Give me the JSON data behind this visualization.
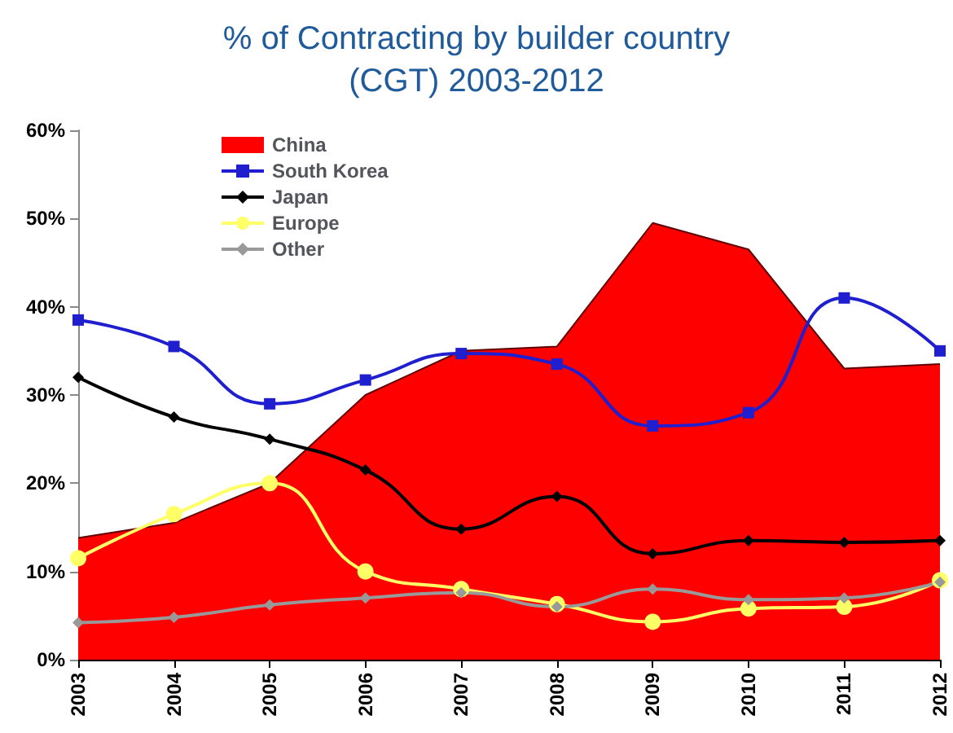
{
  "chart_data": {
    "type": "line",
    "title": "% of Contracting by builder country\n(CGT) 2003-2012",
    "categories": [
      "2003",
      "2004",
      "2005",
      "2006",
      "2007",
      "2008",
      "2009",
      "2010",
      "2011",
      "2012"
    ],
    "series": [
      {
        "name": "China",
        "type": "area",
        "color": "#ff0000",
        "marker": "none",
        "values": [
          13.8,
          15.5,
          20,
          30,
          35,
          35.5,
          49.5,
          46.5,
          33,
          33.5
        ]
      },
      {
        "name": "South Korea",
        "color": "#1f1fd0",
        "marker": "square",
        "values": [
          38.5,
          35.5,
          29,
          31.7,
          34.7,
          33.5,
          26.5,
          28,
          41,
          35
        ]
      },
      {
        "name": "Japan",
        "color": "#000000",
        "marker": "diamond",
        "values": [
          32,
          27.5,
          25,
          21.5,
          14.8,
          18.5,
          12,
          13.5,
          13.3,
          13.5
        ]
      },
      {
        "name": "Europe",
        "color": "#ffff66",
        "marker": "circle",
        "values": [
          11.5,
          16.5,
          20,
          10,
          8,
          6.3,
          4.3,
          5.8,
          6,
          9
        ]
      },
      {
        "name": "Other",
        "color": "#999999",
        "marker": "diamond",
        "values": [
          4.2,
          4.8,
          6.2,
          7,
          7.6,
          6,
          8,
          6.8,
          7,
          8.8
        ]
      }
    ],
    "ylim": [
      0,
      60
    ],
    "yticks": [
      {
        "value": 0,
        "label": "0%"
      },
      {
        "value": 10,
        "label": "10%"
      },
      {
        "value": 20,
        "label": "20%"
      },
      {
        "value": 30,
        "label": "30%"
      },
      {
        "value": 40,
        "label": "40%"
      },
      {
        "value": 50,
        "label": "50%"
      },
      {
        "value": 60,
        "label": "60%"
      }
    ],
    "grid": false,
    "legend": "top left"
  }
}
